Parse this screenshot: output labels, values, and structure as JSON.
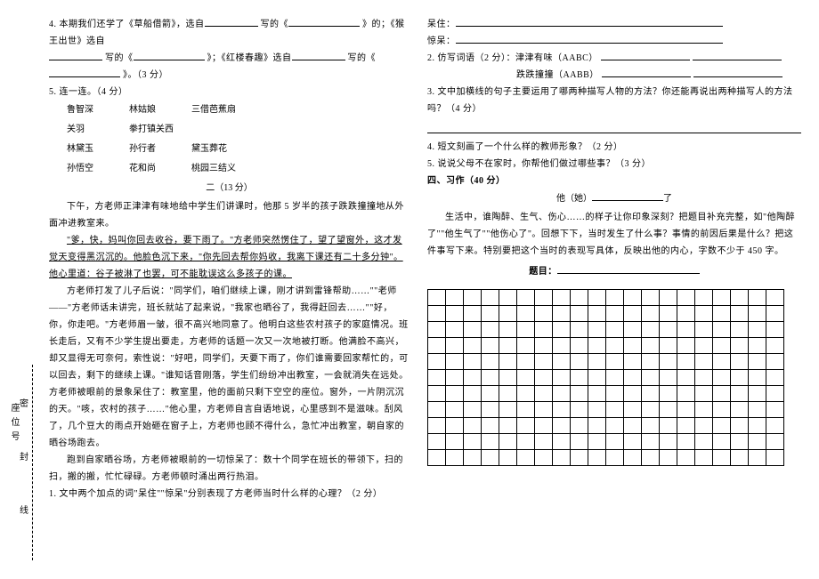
{
  "sidebar": {
    "seat_label": "座位号",
    "chars": [
      "密",
      "封",
      "线"
    ]
  },
  "left": {
    "q4": "4. 本期我们还学了《草船借箭》，选自",
    "q4b": "写的《",
    "q4c": "》的；《猴王出世》选自",
    "q4d": "写的《",
    "q4e": "》；《红楼春趣》选自",
    "q4f": "写的《",
    "q4g": "》。（3 分）",
    "q5": "5. 连一连。（4 分）",
    "match": [
      [
        "鲁智深",
        "林姑娘",
        "三借芭蕉扇"
      ],
      [
        "关羽",
        "拳打镇关西",
        ""
      ],
      [
        "林黛玉",
        "孙行者",
        "黛玉葬花"
      ],
      [
        "孙悟空",
        "花和尚",
        "桃园三结义"
      ]
    ],
    "sec2": "二（13 分）",
    "p1": "下午，方老师正津津有味地给中学生们讲课时，他那 5 岁半的孩子跌跌撞撞地从外面冲进教室来。",
    "p2": "\"爹，快，妈叫你回去收谷，要下雨了。\"方老师突然愣住了，望了望窗外，这才发觉天变得黑沉沉的。他脸色沉下来，\"你先回去帮你妈收，我离下课还有二十多分钟\"。他心里道：谷子被淋了也罢，可不能耽误这么多孩子的课。",
    "p3a": "方老师打发了儿子后说：\"同学们，咱们继续上课，刚才讲到雷锋帮助……\"\"老师——\"方老师话未讲完，班长就站了起来说，\"我家也晒谷了，我得赶回去……\"\"好，你，你走吧。\"方老师眉一皱，很不高兴地同意了。他明白这些农村孩子的家庭情况。班长走后，又有不少学生提出要走，方老师的话题一次又一次地被打断。他满脸不高兴，却又显得无可奈何，索性说：\"好吧，同学们，天要下雨了，你们谁需要回家帮忙的，可以回去，剩下的继续上课。\"谁知话音刚落，学生们纷纷冲出教室，一会就消失在远处。方老师被眼前的景象呆住了：教室里，他的面前只剩下空空的座位。窗外，一片阴沉沉的天。\"咳，农村的孩子……\"他心里，方老师自言自语地说，心里感到不是滋味。刮风了，几个豆大的雨点开始砸在窗子上，方老师也顾不得什么，急忙冲出教室，朝自家的晒谷场跑去。",
    "p4": "跑到自家晒谷场，方老师被眼前的一切惊呆了：数十个同学在班长的带领下，扫的扫，搬的搬，忙忙碌碌。方老师顿时涌出两行热泪。",
    "q1": "1. 文中两个加点的词\"呆住\"\"惊呆\"分别表现了方老师当时什么样的心理？（2 分）"
  },
  "right": {
    "dz": "呆住：",
    "jd": "惊呆：",
    "q2a": "2. 仿写词语（2 分）：津津有味（AABC）",
    "q2b": "跌跌撞撞（AABB）",
    "q3": "3. 文中加横线的句子主要运用了哪两种描写人物的方法？你还能再说出两种描写人的方法吗？（4 分）",
    "q4": "4. 短文刻画了一个什么样的教师形象？（2 分）",
    "q5": "5. 说说父母不在家时，你帮他们做过哪些事？（3 分）",
    "sec4": "四、习作（40 分）",
    "title_fill_a": "他（她）",
    "title_fill_b": "了",
    "p1": "生活中，谁陶醉、生气、伤心……的样子让你印象深刻？把题目补充完整，如\"他陶醉了\"\"他生气了\"\"他伤心了\"。回想下下，当时发生了什么事？事情的前因后果是什么？把这件事写下来。特别要把这个当时的表现写具体，反映出他的内心，字数不少于 450 字。",
    "titlelabel": "题目："
  },
  "grid": {
    "rows": 11,
    "cols": 20
  }
}
